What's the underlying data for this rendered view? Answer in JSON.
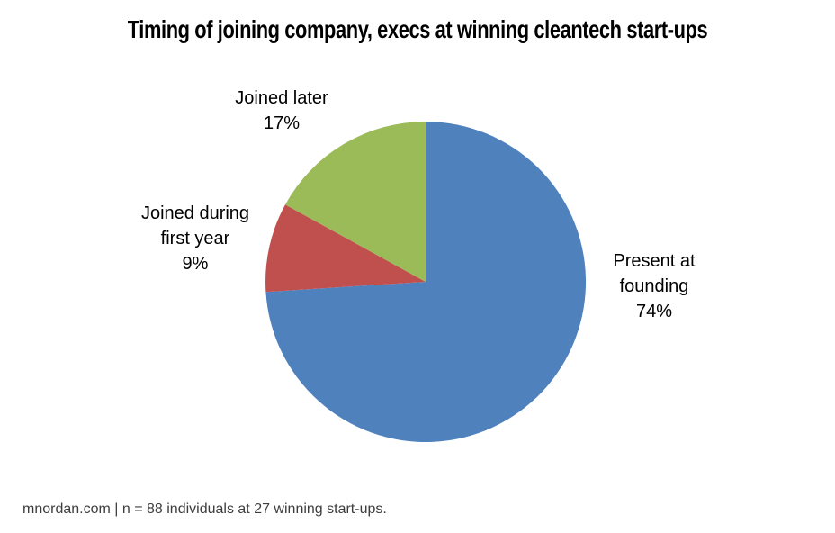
{
  "chart_data": {
    "type": "pie",
    "title": "Timing of joining company, execs at winning cleantech start-ups",
    "categories": [
      "Present at founding",
      "Joined during first year",
      "Joined later"
    ],
    "values": [
      74,
      9,
      17
    ],
    "unit": "percent",
    "colors": [
      "#4F81BD",
      "#C0504D",
      "#9BBB59"
    ],
    "start_angle_deg": 0,
    "direction": "clockwise",
    "legend": "none",
    "grid": "off",
    "data_labels": [
      {
        "category": "Present at founding",
        "text_lines": [
          "Present at",
          "founding",
          "74%"
        ]
      },
      {
        "category": "Joined during first year",
        "text_lines": [
          "Joined during",
          "first year",
          "9%"
        ]
      },
      {
        "category": "Joined later",
        "text_lines": [
          "Joined later",
          "17%"
        ]
      }
    ]
  },
  "footer": {
    "text": "mnordan.com | n = 88 individuals at 27 winning start-ups."
  }
}
